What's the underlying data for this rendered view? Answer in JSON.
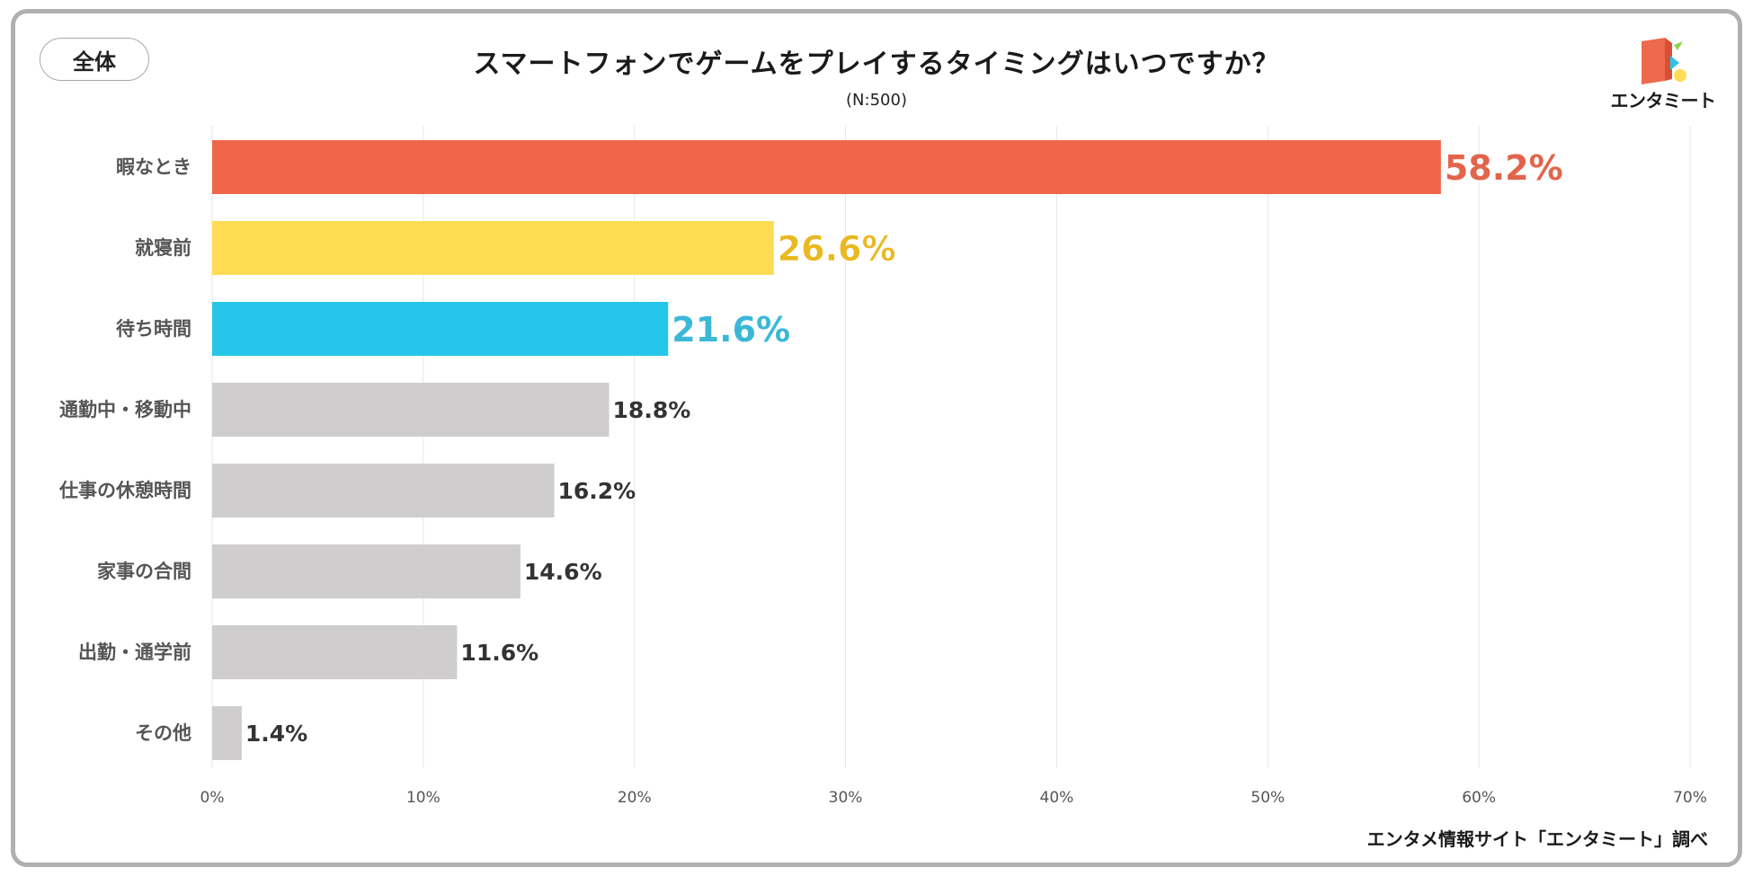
{
  "badge": "全体",
  "header": {
    "title": "スマートフォンでゲームをプレイするタイミングはいつですか？",
    "subtitle": "(N:500)"
  },
  "logo": {
    "text": "エンタミート",
    "icon": "entameet-logo-icon"
  },
  "footer": {
    "source": "エンタメ情報サイト「エンタミート」調べ"
  },
  "colors": {
    "top1": "#F0664A",
    "top2": "#FEDD55",
    "top3": "#26C6EA",
    "other": "#CFCDCE",
    "top1_label": "#E2654B",
    "top2_label": "#EAB820",
    "top3_label": "#3BB8D8",
    "other_label": "#333333",
    "grid": "#e6e6e6"
  },
  "chart_data": {
    "type": "bar",
    "orientation": "horizontal",
    "categories": [
      "暇なとき",
      "就寝前",
      "待ち時間",
      "通勤中・移動中",
      "仕事の休憩時間",
      "家事の合間",
      "出勤・通学前",
      "その他"
    ],
    "values": [
      58.2,
      26.6,
      21.6,
      18.8,
      16.2,
      14.6,
      11.6,
      1.4
    ],
    "value_labels": [
      "58.2%",
      "26.6%",
      "21.6%",
      "18.8%",
      "16.2%",
      "14.6%",
      "11.6%",
      "1.4%"
    ],
    "title": "スマートフォンでゲームをプレイするタイミングはいつですか？",
    "subtitle": "(N:500)",
    "xlim": [
      0,
      70
    ],
    "xticks": [
      0,
      10,
      20,
      30,
      40,
      50,
      60,
      70
    ],
    "xtick_labels": [
      "0%",
      "10%",
      "20%",
      "30%",
      "40%",
      "50%",
      "60%",
      "70%"
    ],
    "grid": true
  }
}
